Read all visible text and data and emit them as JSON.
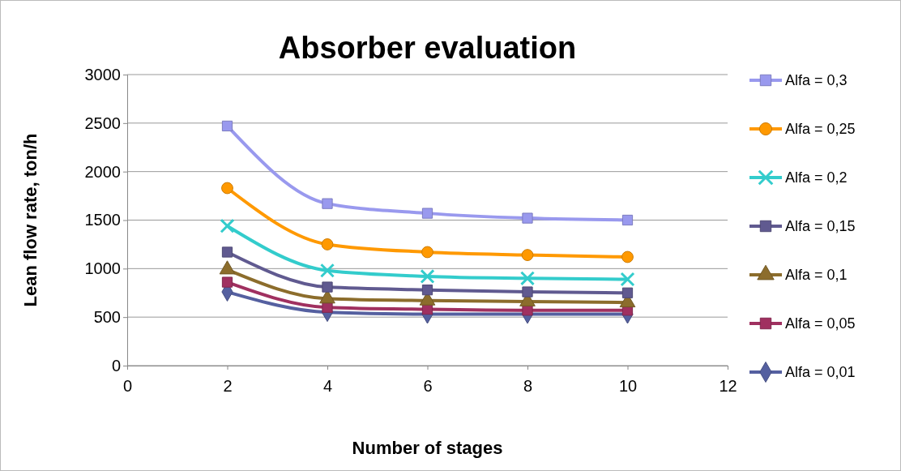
{
  "chart_data": {
    "type": "line",
    "title": "Absorber evaluation",
    "xlabel": "Number of stages",
    "ylabel": "Lean flow rate, ton/h",
    "x": [
      2,
      4,
      6,
      8,
      10
    ],
    "xlim": [
      0,
      12
    ],
    "xticks": [
      0,
      2,
      4,
      6,
      8,
      10,
      12
    ],
    "ylim": [
      0,
      3000
    ],
    "yticks": [
      0,
      500,
      1000,
      1500,
      2000,
      2500,
      3000
    ],
    "grid": "y",
    "legend": "right",
    "line_style": "solid",
    "series": [
      {
        "name": "Alfa = 0,3",
        "color": "#9999ee",
        "marker": "square",
        "values": [
          2470,
          1670,
          1570,
          1520,
          1500
        ]
      },
      {
        "name": "Alfa = 0,25",
        "color": "#ff9900",
        "marker": "circle",
        "values": [
          1830,
          1250,
          1170,
          1140,
          1120
        ]
      },
      {
        "name": "Alfa = 0,2",
        "color": "#33cccc",
        "marker": "cross",
        "values": [
          1440,
          980,
          920,
          900,
          890
        ]
      },
      {
        "name": "Alfa = 0,15",
        "color": "#605a90",
        "marker": "square",
        "values": [
          1170,
          810,
          780,
          760,
          750
        ]
      },
      {
        "name": "Alfa = 0,1",
        "color": "#8c6d2c",
        "marker": "triangle",
        "values": [
          990,
          690,
          670,
          660,
          650
        ]
      },
      {
        "name": "Alfa = 0,05",
        "color": "#a03060",
        "marker": "square",
        "values": [
          860,
          600,
          580,
          570,
          570
        ]
      },
      {
        "name": "Alfa = 0,01",
        "color": "#5560a0",
        "marker": "diamond",
        "values": [
          760,
          550,
          530,
          530,
          530
        ]
      }
    ]
  }
}
